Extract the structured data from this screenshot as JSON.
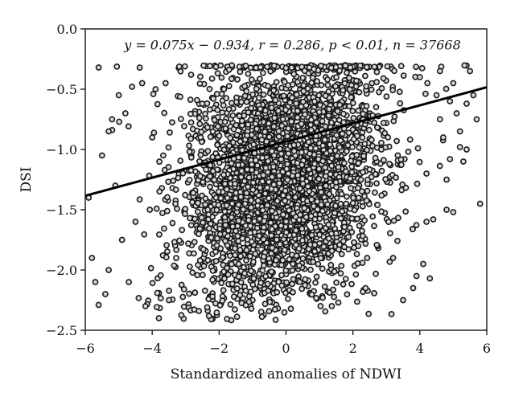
{
  "chart_data": {
    "type": "scatter",
    "title": "",
    "xlabel": "Standardized anomalies of NDWI",
    "ylabel": "DSI",
    "xlim": [
      -6,
      6
    ],
    "ylim": [
      -2.5,
      0.0
    ],
    "x_ticks": [
      -6,
      -4,
      -2,
      0,
      2,
      4,
      6
    ],
    "y_ticks": [
      0.0,
      -0.5,
      -1.0,
      -1.5,
      -2.0,
      -2.5
    ],
    "x_tick_labels": [
      "−6",
      "−4",
      "−2",
      "0",
      "2",
      "4",
      "6"
    ],
    "y_tick_labels": [
      "0.0",
      "−0.5",
      "−1.0",
      "−1.5",
      "−2.0",
      "−2.5"
    ],
    "grid": false,
    "regression": {
      "slope": 0.075,
      "intercept": -0.934,
      "x_range": [
        -6,
        6
      ]
    },
    "annotation_text": "y = 0.075x − 0.934, r = 0.286, p < 0.01, n = 37668",
    "n_points": 37668,
    "y_cap": -0.3,
    "marker": {
      "fill": "#d9d9d9",
      "stroke": "#1a1a1a"
    },
    "points": [
      [
        -5.6,
        -0.32
      ],
      [
        -5.9,
        -1.4
      ],
      [
        -5.8,
        -1.9
      ],
      [
        -5.7,
        -2.1
      ],
      [
        -5.6,
        -2.29
      ],
      [
        -5.4,
        -2.2
      ],
      [
        -5.5,
        -1.05
      ],
      [
        -5.3,
        -0.85
      ],
      [
        -5.2,
        -0.75
      ],
      [
        -5.0,
        -0.55
      ],
      [
        -4.8,
        -0.7
      ],
      [
        -4.6,
        -0.48
      ],
      [
        -4.3,
        -0.45
      ],
      [
        -4.2,
        -2.3
      ],
      [
        -3.8,
        -2.4
      ],
      [
        -3.5,
        -2.25
      ],
      [
        -4.0,
        -0.9
      ],
      [
        -4.5,
        -1.6
      ],
      [
        -5.1,
        -1.3
      ],
      [
        -4.9,
        -1.75
      ],
      [
        -5.3,
        -2.0
      ],
      [
        -4.7,
        -2.1
      ],
      [
        -3.9,
        -0.5
      ],
      [
        -3.6,
        -0.45
      ],
      [
        4.2,
        -1.6
      ],
      [
        4.4,
        -1.58
      ],
      [
        4.5,
        -0.55
      ],
      [
        4.6,
        -0.75
      ],
      [
        4.7,
        -0.9
      ],
      [
        4.8,
        -1.25
      ],
      [
        4.8,
        -1.5
      ],
      [
        5.0,
        -1.52
      ],
      [
        5.2,
        -0.85
      ],
      [
        5.3,
        -1.1
      ],
      [
        5.4,
        -0.62
      ],
      [
        5.5,
        -0.35
      ],
      [
        5.6,
        -0.55
      ],
      [
        5.7,
        -0.75
      ],
      [
        5.8,
        -1.45
      ],
      [
        5.2,
        -0.98
      ],
      [
        4.9,
        -1.08
      ],
      [
        4.3,
        -2.07
      ],
      [
        4.1,
        -1.95
      ],
      [
        3.9,
        -2.05
      ],
      [
        3.5,
        -2.25
      ],
      [
        3.2,
        -1.9
      ],
      [
        4.6,
        -0.35
      ],
      [
        5.0,
        -0.45
      ],
      [
        3.8,
        -2.15
      ],
      [
        4.2,
        -1.2
      ],
      [
        4.0,
        -0.4
      ],
      [
        5.1,
        -0.7
      ],
      [
        5.4,
        -1.0
      ],
      [
        4.9,
        -0.6
      ]
    ]
  }
}
